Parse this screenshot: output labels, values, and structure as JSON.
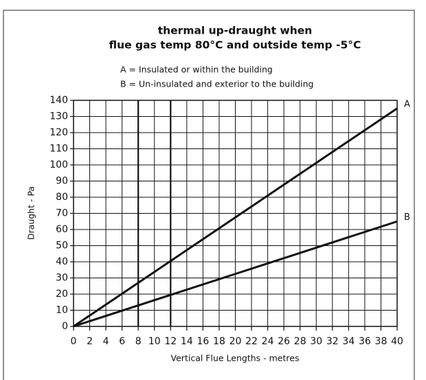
{
  "chart_data": {
    "type": "line",
    "title": [
      "thermal up-draught when",
      "flue gas temp 80°C and outside temp -5°C"
    ],
    "annotations": [
      "A = Insulated  or within the building",
      "B = Un-insulated and exterior to the building"
    ],
    "x_label": "Vertical Flue Lengths - metres",
    "y_label": "Draught - Pa",
    "x": [
      0,
      40
    ],
    "series": [
      {
        "name": "A",
        "color": "#111111",
        "values": [
          0,
          135
        ]
      },
      {
        "name": "B",
        "color": "#111111",
        "values": [
          0,
          65
        ]
      }
    ],
    "xlim": [
      0,
      40
    ],
    "xticks": [
      0,
      2,
      4,
      6,
      8,
      10,
      12,
      14,
      16,
      18,
      20,
      22,
      24,
      26,
      28,
      30,
      32,
      34,
      36,
      38,
      40
    ],
    "ylim": [
      0,
      140
    ],
    "yticks": [
      0,
      10,
      20,
      30,
      40,
      50,
      60,
      70,
      80,
      90,
      100,
      110,
      120,
      130,
      140
    ],
    "highlight_x": [
      8,
      12
    ],
    "grid": true
  }
}
